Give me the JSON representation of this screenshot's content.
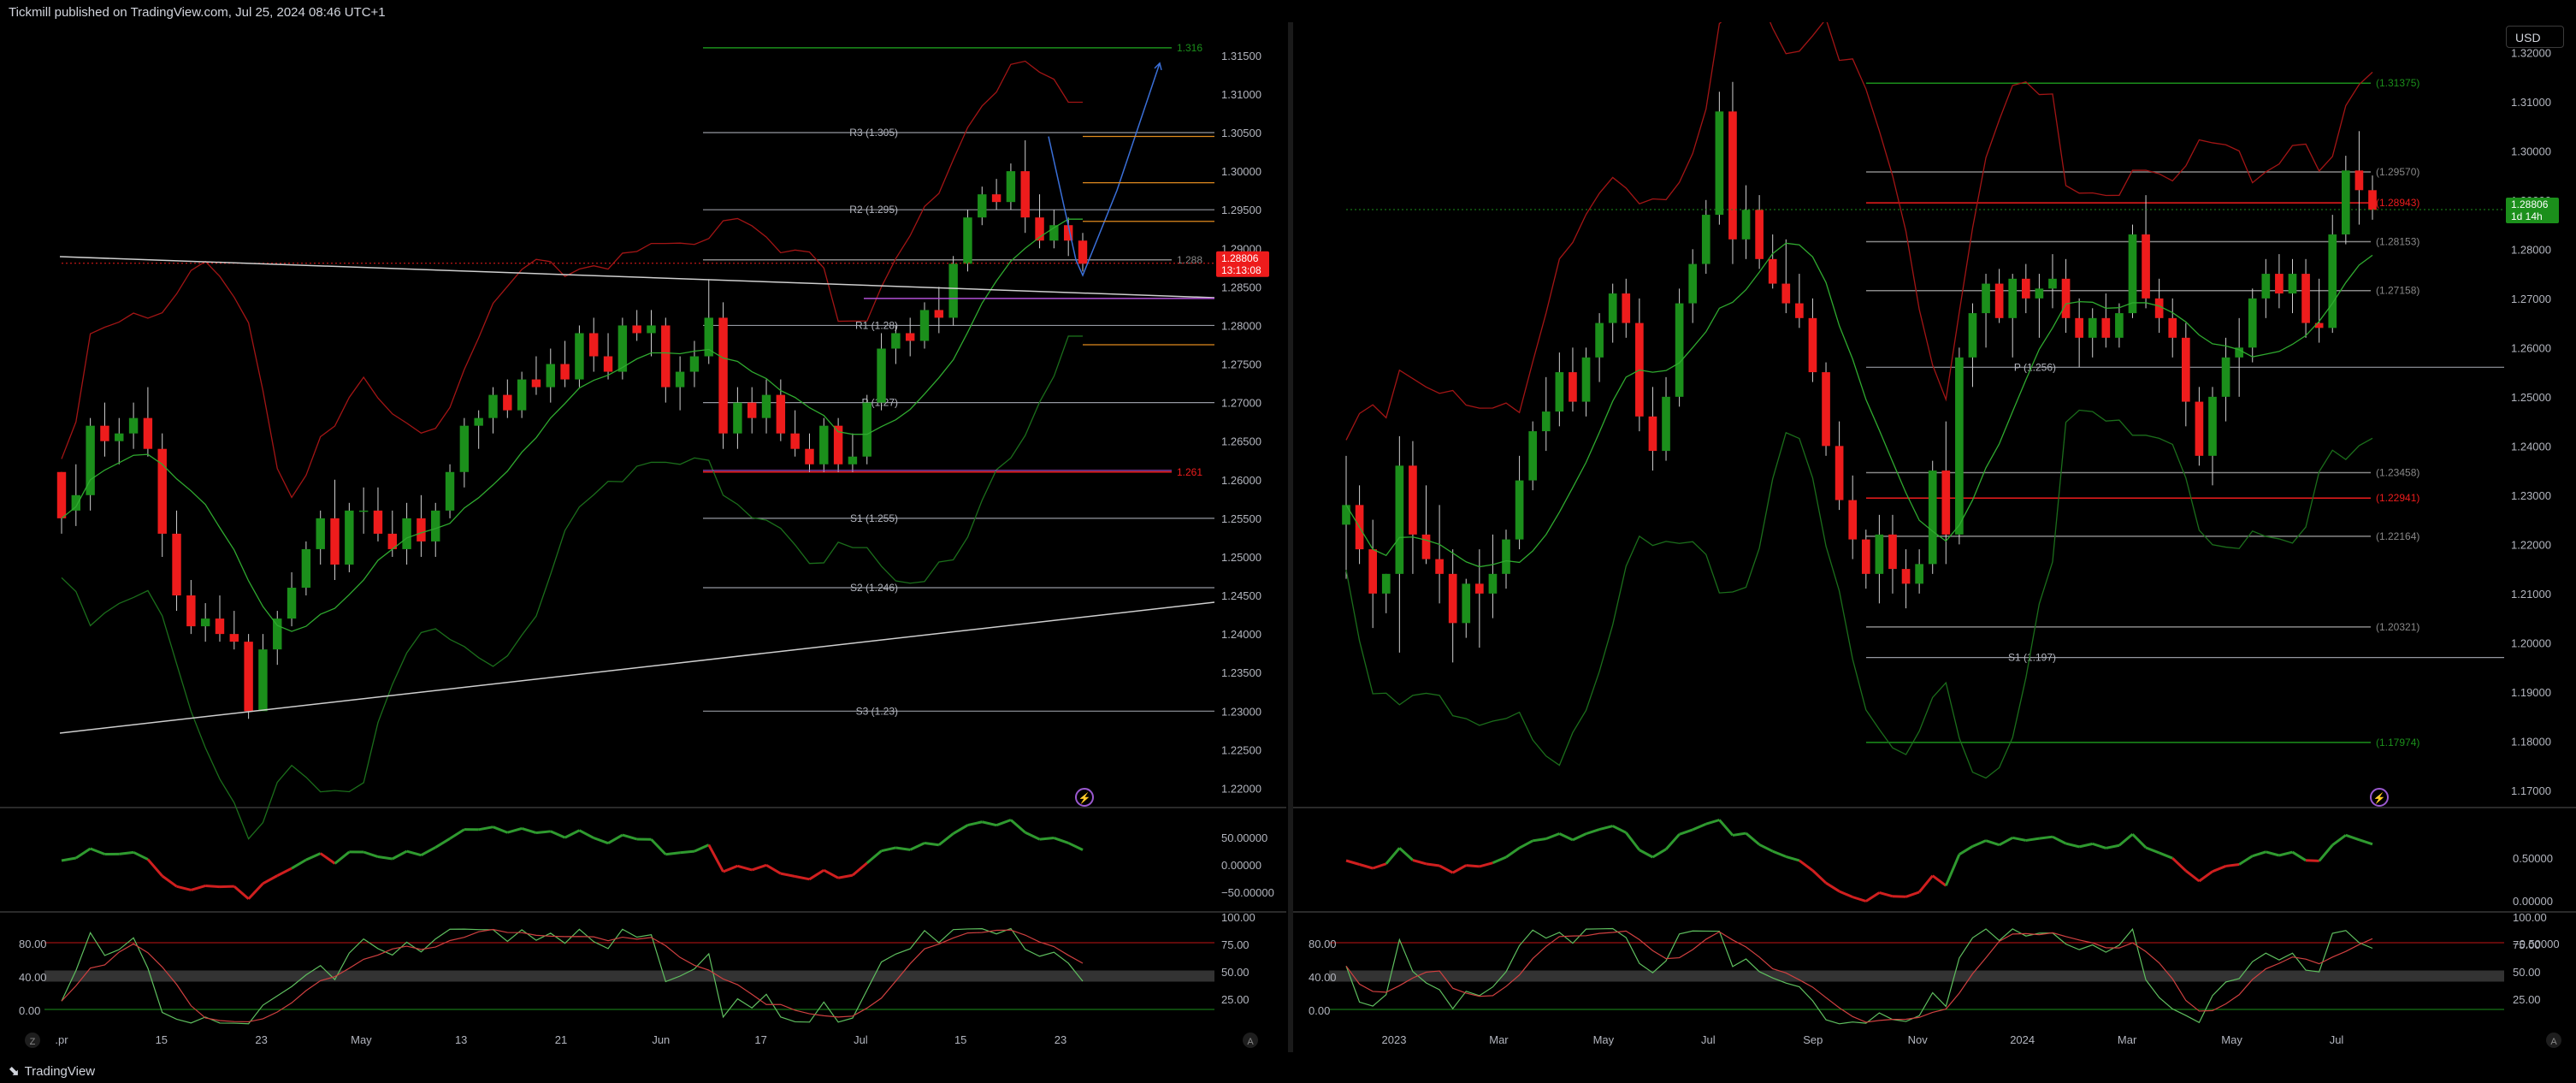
{
  "header": {
    "publisher": "Tickmill published on TradingView.com, Jul 25, 2024 08:46 UTC+1"
  },
  "footer": {
    "brand": "TradingView"
  },
  "currency_button": "USD",
  "colors": {
    "bull": "#1b8f1b",
    "bear": "#ee1c1c",
    "grid": "#1c1c1c",
    "bg": "#000000",
    "pivot": "#b2b5be"
  },
  "chart_data": [
    {
      "type": "candlestick",
      "id": "left-daily",
      "price_axis": [
        "1.31500",
        "1.31000",
        "1.30500",
        "1.30000",
        "1.29500",
        "1.29000",
        "1.28500",
        "1.28000",
        "1.27500",
        "1.27000",
        "1.26500",
        "1.26000",
        "1.25500",
        "1.25000",
        "1.24500",
        "1.24000",
        "1.23500",
        "1.23000",
        "1.22500",
        "1.22000"
      ],
      "ylim": [
        1.2175,
        1.3182
      ],
      "time_axis": [
        ".pr",
        "15",
        "23",
        "May",
        "13",
        "21",
        "Jun",
        "17",
        "Jul",
        "15",
        "23"
      ],
      "last_price": "1.28806",
      "countdown": "13:13:08",
      "pivot_levels": [
        {
          "label": "R3 (1.305)",
          "value": 1.305
        },
        {
          "label": "R2 (1.295)",
          "value": 1.295
        },
        {
          "label": "R1 (1.28)",
          "value": 1.28
        },
        {
          "label": "P (1.27)",
          "value": 1.27
        },
        {
          "label": "S1 (1.255)",
          "value": 1.255
        },
        {
          "label": "S2 (1.246)",
          "value": 1.246
        },
        {
          "label": "S3 (1.23)",
          "value": 1.23
        }
      ],
      "right_labels": [
        {
          "label": "1.316",
          "value": 1.316,
          "color": "#1b8f1b"
        },
        {
          "label": "1.288",
          "value": 1.2885,
          "color": "#888888"
        },
        {
          "label": "1.261",
          "value": 1.261,
          "color": "#ee1c1c"
        }
      ],
      "candles": [
        [
          1.261,
          1.261,
          1.253,
          1.255
        ],
        [
          1.256,
          1.262,
          1.254,
          1.258
        ],
        [
          1.258,
          1.268,
          1.256,
          1.267
        ],
        [
          1.267,
          1.27,
          1.263,
          1.265
        ],
        [
          1.265,
          1.268,
          1.262,
          1.266
        ],
        [
          1.266,
          1.27,
          1.264,
          1.268
        ],
        [
          1.268,
          1.272,
          1.263,
          1.264
        ],
        [
          1.264,
          1.266,
          1.25,
          1.253
        ],
        [
          1.253,
          1.256,
          1.243,
          1.245
        ],
        [
          1.245,
          1.247,
          1.24,
          1.241
        ],
        [
          1.241,
          1.244,
          1.239,
          1.242
        ],
        [
          1.242,
          1.245,
          1.239,
          1.24
        ],
        [
          1.24,
          1.243,
          1.238,
          1.239
        ],
        [
          1.239,
          1.24,
          1.229,
          1.23
        ],
        [
          1.23,
          1.24,
          1.231,
          1.238
        ],
        [
          1.238,
          1.243,
          1.236,
          1.242
        ],
        [
          1.242,
          1.248,
          1.241,
          1.246
        ],
        [
          1.246,
          1.252,
          1.245,
          1.251
        ],
        [
          1.251,
          1.256,
          1.249,
          1.255
        ],
        [
          1.255,
          1.26,
          1.247,
          1.249
        ],
        [
          1.249,
          1.257,
          1.248,
          1.256
        ],
        [
          1.256,
          1.259,
          1.253,
          1.256
        ],
        [
          1.256,
          1.259,
          1.252,
          1.253
        ],
        [
          1.253,
          1.256,
          1.25,
          1.251
        ],
        [
          1.251,
          1.257,
          1.249,
          1.255
        ],
        [
          1.255,
          1.258,
          1.25,
          1.252
        ],
        [
          1.252,
          1.257,
          1.25,
          1.256
        ],
        [
          1.256,
          1.262,
          1.255,
          1.261
        ],
        [
          1.261,
          1.268,
          1.259,
          1.267
        ],
        [
          1.267,
          1.269,
          1.264,
          1.268
        ],
        [
          1.268,
          1.272,
          1.266,
          1.271
        ],
        [
          1.271,
          1.273,
          1.268,
          1.269
        ],
        [
          1.269,
          1.274,
          1.268,
          1.273
        ],
        [
          1.273,
          1.276,
          1.271,
          1.272
        ],
        [
          1.272,
          1.277,
          1.27,
          1.275
        ],
        [
          1.275,
          1.278,
          1.272,
          1.273
        ],
        [
          1.273,
          1.28,
          1.272,
          1.279
        ],
        [
          1.279,
          1.281,
          1.274,
          1.276
        ],
        [
          1.276,
          1.279,
          1.273,
          1.274
        ],
        [
          1.274,
          1.281,
          1.273,
          1.28
        ],
        [
          1.28,
          1.282,
          1.278,
          1.279
        ],
        [
          1.279,
          1.282,
          1.276,
          1.28
        ],
        [
          1.28,
          1.281,
          1.27,
          1.272
        ],
        [
          1.272,
          1.276,
          1.269,
          1.274
        ],
        [
          1.274,
          1.278,
          1.272,
          1.276
        ],
        [
          1.276,
          1.286,
          1.275,
          1.281
        ],
        [
          1.281,
          1.283,
          1.264,
          1.266
        ],
        [
          1.266,
          1.272,
          1.264,
          1.27
        ],
        [
          1.27,
          1.272,
          1.266,
          1.268
        ],
        [
          1.268,
          1.273,
          1.266,
          1.271
        ],
        [
          1.271,
          1.273,
          1.265,
          1.266
        ],
        [
          1.266,
          1.269,
          1.263,
          1.264
        ],
        [
          1.264,
          1.266,
          1.261,
          1.262
        ],
        [
          1.262,
          1.268,
          1.261,
          1.267
        ],
        [
          1.267,
          1.268,
          1.261,
          1.262
        ],
        [
          1.262,
          1.266,
          1.261,
          1.263
        ],
        [
          1.263,
          1.271,
          1.262,
          1.27
        ],
        [
          1.27,
          1.279,
          1.269,
          1.277
        ],
        [
          1.277,
          1.28,
          1.275,
          1.279
        ],
        [
          1.279,
          1.281,
          1.276,
          1.278
        ],
        [
          1.278,
          1.283,
          1.277,
          1.282
        ],
        [
          1.282,
          1.285,
          1.279,
          1.281
        ],
        [
          1.281,
          1.289,
          1.28,
          1.288
        ],
        [
          1.288,
          1.295,
          1.287,
          1.294
        ],
        [
          1.294,
          1.298,
          1.293,
          1.297
        ],
        [
          1.297,
          1.299,
          1.295,
          1.296
        ],
        [
          1.296,
          1.301,
          1.295,
          1.3
        ],
        [
          1.3,
          1.304,
          1.292,
          1.294
        ],
        [
          1.294,
          1.297,
          1.29,
          1.291
        ],
        [
          1.291,
          1.295,
          1.29,
          1.293
        ],
        [
          1.293,
          1.294,
          1.289,
          1.291
        ],
        [
          1.291,
          1.292,
          1.287,
          1.288
        ]
      ],
      "tail_forecast": [
        [
          1.2885,
          1.2865
        ],
        [
          1.2865,
          1.2975
        ],
        [
          1.2975,
          1.314
        ]
      ]
    },
    {
      "type": "candlestick",
      "id": "right-weekly",
      "price_axis": [
        "1.32000",
        "1.31000",
        "1.30000",
        "1.29000",
        "1.28000",
        "1.27000",
        "1.26000",
        "1.25000",
        "1.24000",
        "1.23000",
        "1.22000",
        "1.21000",
        "1.20000",
        "1.19000",
        "1.18000",
        "1.17000"
      ],
      "ylim": [
        1.1665,
        1.3244
      ],
      "time_axis": [
        "2023",
        "Mar",
        "May",
        "Jul",
        "Sep",
        "Nov",
        "2024",
        "Mar",
        "May",
        "Jul"
      ],
      "last_price": "1.28806",
      "countdown": "1d 14h",
      "pivot_levels": [
        {
          "label": "P (1.256)",
          "value": 1.256
        },
        {
          "label": "S1 (1.197)",
          "value": 1.197
        }
      ],
      "right_labels": [
        {
          "label": "(1.31375)",
          "value": 1.31375,
          "color": "#1b8f1b"
        },
        {
          "label": "(1.29570)",
          "value": 1.2957,
          "color": "#888888"
        },
        {
          "label": "(1.28943)",
          "value": 1.28943,
          "color": "#ee1c1c"
        },
        {
          "label": "(1.28153)",
          "value": 1.28153,
          "color": "#888888"
        },
        {
          "label": "(1.27158)",
          "value": 1.27158,
          "color": "#888888"
        },
        {
          "label": "(1.23458)",
          "value": 1.23458,
          "color": "#888888"
        },
        {
          "label": "(1.22941)",
          "value": 1.22941,
          "color": "#ee1c1c"
        },
        {
          "label": "(1.22164)",
          "value": 1.22164,
          "color": "#888888"
        },
        {
          "label": "(1.20321)",
          "value": 1.20321,
          "color": "#888888"
        },
        {
          "label": "(1.17974)",
          "value": 1.17974,
          "color": "#1b8f1b"
        }
      ],
      "candles": [
        [
          1.224,
          1.238,
          1.213,
          1.228
        ],
        [
          1.228,
          1.232,
          1.216,
          1.219
        ],
        [
          1.219,
          1.225,
          1.203,
          1.21
        ],
        [
          1.21,
          1.214,
          1.206,
          1.214
        ],
        [
          1.214,
          1.242,
          1.198,
          1.236
        ],
        [
          1.236,
          1.241,
          1.214,
          1.222
        ],
        [
          1.222,
          1.232,
          1.216,
          1.217
        ],
        [
          1.217,
          1.228,
          1.208,
          1.214
        ],
        [
          1.214,
          1.219,
          1.196,
          1.204
        ],
        [
          1.204,
          1.213,
          1.201,
          1.212
        ],
        [
          1.212,
          1.219,
          1.199,
          1.21
        ],
        [
          1.21,
          1.222,
          1.205,
          1.214
        ],
        [
          1.214,
          1.223,
          1.211,
          1.221
        ],
        [
          1.221,
          1.238,
          1.219,
          1.233
        ],
        [
          1.233,
          1.245,
          1.231,
          1.243
        ],
        [
          1.243,
          1.254,
          1.239,
          1.247
        ],
        [
          1.247,
          1.259,
          1.244,
          1.255
        ],
        [
          1.255,
          1.26,
          1.247,
          1.249
        ],
        [
          1.249,
          1.26,
          1.246,
          1.258
        ],
        [
          1.258,
          1.267,
          1.253,
          1.265
        ],
        [
          1.265,
          1.273,
          1.261,
          1.271
        ],
        [
          1.271,
          1.274,
          1.262,
          1.265
        ],
        [
          1.265,
          1.27,
          1.243,
          1.246
        ],
        [
          1.246,
          1.252,
          1.235,
          1.239
        ],
        [
          1.239,
          1.254,
          1.237,
          1.25
        ],
        [
          1.25,
          1.272,
          1.248,
          1.269
        ],
        [
          1.269,
          1.28,
          1.265,
          1.277
        ],
        [
          1.277,
          1.29,
          1.275,
          1.287
        ],
        [
          1.287,
          1.312,
          1.285,
          1.308
        ],
        [
          1.308,
          1.314,
          1.277,
          1.282
        ],
        [
          1.282,
          1.293,
          1.278,
          1.288
        ],
        [
          1.288,
          1.291,
          1.276,
          1.278
        ],
        [
          1.278,
          1.283,
          1.272,
          1.273
        ],
        [
          1.273,
          1.282,
          1.267,
          1.269
        ],
        [
          1.269,
          1.275,
          1.264,
          1.266
        ],
        [
          1.266,
          1.27,
          1.253,
          1.255
        ],
        [
          1.255,
          1.257,
          1.238,
          1.24
        ],
        [
          1.24,
          1.245,
          1.227,
          1.229
        ],
        [
          1.229,
          1.234,
          1.217,
          1.221
        ],
        [
          1.221,
          1.223,
          1.211,
          1.214
        ],
        [
          1.214,
          1.226,
          1.208,
          1.222
        ],
        [
          1.222,
          1.226,
          1.21,
          1.215
        ],
        [
          1.215,
          1.219,
          1.207,
          1.212
        ],
        [
          1.212,
          1.219,
          1.21,
          1.216
        ],
        [
          1.216,
          1.237,
          1.214,
          1.235
        ],
        [
          1.235,
          1.245,
          1.216,
          1.222
        ],
        [
          1.222,
          1.26,
          1.22,
          1.258
        ],
        [
          1.258,
          1.269,
          1.252,
          1.267
        ],
        [
          1.267,
          1.275,
          1.26,
          1.273
        ],
        [
          1.273,
          1.276,
          1.265,
          1.266
        ],
        [
          1.266,
          1.275,
          1.258,
          1.274
        ],
        [
          1.274,
          1.277,
          1.267,
          1.27
        ],
        [
          1.27,
          1.275,
          1.262,
          1.272
        ],
        [
          1.272,
          1.279,
          1.268,
          1.274
        ],
        [
          1.274,
          1.278,
          1.263,
          1.266
        ],
        [
          1.266,
          1.27,
          1.256,
          1.262
        ],
        [
          1.262,
          1.268,
          1.258,
          1.266
        ],
        [
          1.266,
          1.271,
          1.26,
          1.262
        ],
        [
          1.262,
          1.269,
          1.26,
          1.267
        ],
        [
          1.267,
          1.285,
          1.266,
          1.283
        ],
        [
          1.283,
          1.291,
          1.268,
          1.27
        ],
        [
          1.27,
          1.274,
          1.263,
          1.266
        ],
        [
          1.266,
          1.27,
          1.258,
          1.262
        ],
        [
          1.262,
          1.265,
          1.244,
          1.249
        ],
        [
          1.249,
          1.252,
          1.236,
          1.238
        ],
        [
          1.238,
          1.252,
          1.232,
          1.25
        ],
        [
          1.25,
          1.262,
          1.245,
          1.258
        ],
        [
          1.258,
          1.266,
          1.25,
          1.26
        ],
        [
          1.26,
          1.272,
          1.257,
          1.27
        ],
        [
          1.27,
          1.278,
          1.266,
          1.275
        ],
        [
          1.275,
          1.279,
          1.268,
          1.271
        ],
        [
          1.271,
          1.278,
          1.267,
          1.275
        ],
        [
          1.275,
          1.278,
          1.262,
          1.265
        ],
        [
          1.265,
          1.274,
          1.261,
          1.264
        ],
        [
          1.264,
          1.287,
          1.263,
          1.283
        ],
        [
          1.283,
          1.299,
          1.281,
          1.296
        ],
        [
          1.296,
          1.304,
          1.285,
          1.292
        ],
        [
          1.292,
          1.295,
          1.286,
          1.288
        ]
      ]
    }
  ],
  "momentum_panel": {
    "axis": [
      "50.00000",
      "0.00000",
      "−50.00000"
    ]
  },
  "stoch_panel": {
    "left_axis": [
      "80.00",
      "40.00",
      "0.00"
    ],
    "right_axis": [
      "100.00",
      "75.00",
      "50.00",
      "25.00"
    ]
  },
  "footer_buttons": {
    "z": "Z",
    "a": "A"
  },
  "right_momentum_axis": [
    "0.50000",
    "0.00000",
    "−0.50000"
  ],
  "right_stoch_right_axis": [
    "100.00",
    "75.00",
    "50.00",
    "25.00"
  ],
  "right_stoch_left_axis": [
    "80.00",
    "40.00",
    "0.00"
  ]
}
